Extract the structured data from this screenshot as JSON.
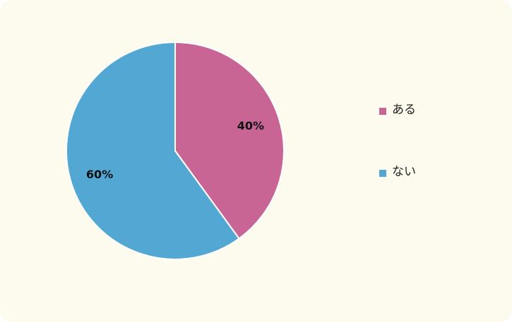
{
  "chart_data": {
    "type": "pie",
    "categories": [
      "ある",
      "ない"
    ],
    "values": [
      40,
      60
    ],
    "value_labels": [
      "40%",
      "60%"
    ],
    "colors": [
      "#c96594",
      "#52a8d2"
    ],
    "legend": "right"
  }
}
